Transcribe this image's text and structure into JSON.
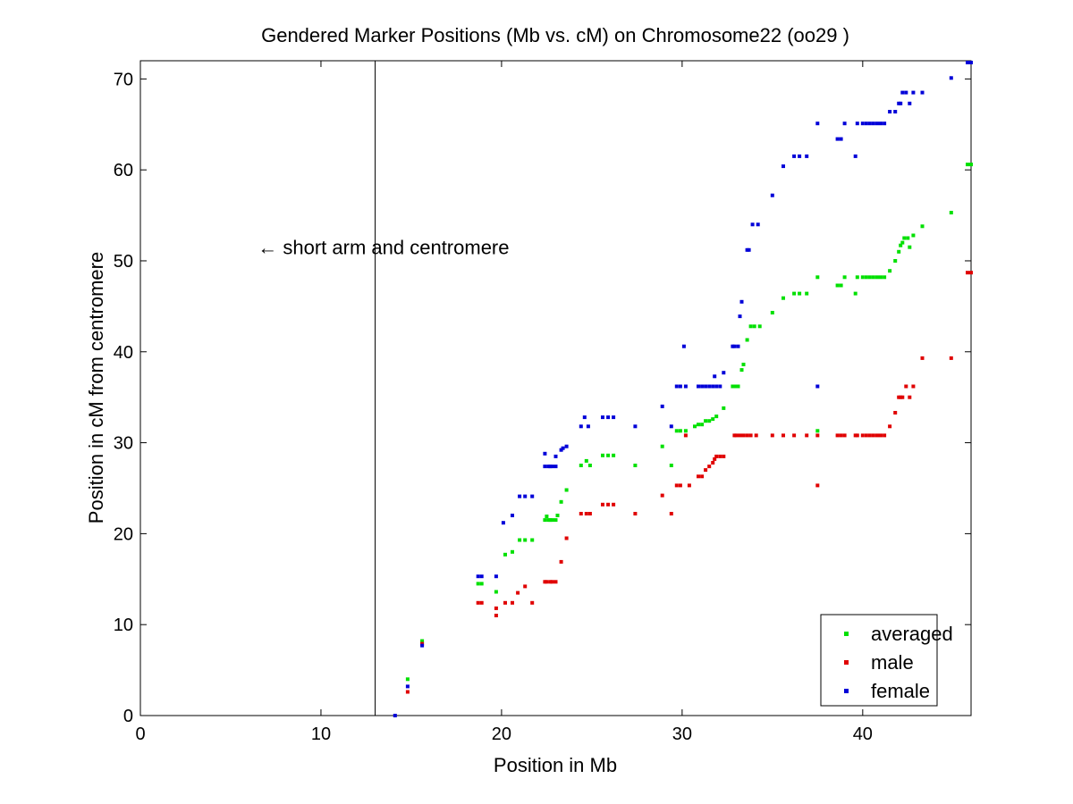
{
  "chart_data": {
    "type": "scatter",
    "title": "Gendered Marker Positions (Mb vs. cM) on Chromosome22 (oo29 )",
    "xlabel": "Position in Mb",
    "ylabel": "Position in cM from centromere",
    "xlim": [
      0,
      46
    ],
    "ylim": [
      0,
      72
    ],
    "xticks": [
      0,
      10,
      20,
      30,
      40
    ],
    "yticks": [
      0,
      10,
      20,
      30,
      40,
      50,
      60,
      70
    ],
    "grid": false,
    "legend_position": "bottom-right",
    "annotation": {
      "text": "← short arm and centromere",
      "x": 6.5,
      "y": 51.5
    },
    "vline_x": 13,
    "series": [
      {
        "name": "averaged",
        "color": "#00e000",
        "points": [
          [
            14.8,
            4.0
          ],
          [
            15.6,
            8.2
          ],
          [
            18.7,
            14.5
          ],
          [
            18.9,
            14.5
          ],
          [
            19.7,
            13.6
          ],
          [
            20.2,
            17.7
          ],
          [
            20.6,
            18.0
          ],
          [
            21.0,
            19.3
          ],
          [
            21.3,
            19.3
          ],
          [
            21.7,
            19.3
          ],
          [
            22.4,
            21.5
          ],
          [
            22.5,
            21.9
          ],
          [
            22.6,
            21.5
          ],
          [
            22.7,
            21.5
          ],
          [
            22.8,
            21.5
          ],
          [
            23.0,
            21.5
          ],
          [
            23.1,
            22.0
          ],
          [
            23.3,
            23.5
          ],
          [
            23.6,
            24.8
          ],
          [
            24.4,
            27.5
          ],
          [
            24.7,
            28.0
          ],
          [
            24.9,
            27.5
          ],
          [
            25.6,
            28.6
          ],
          [
            25.9,
            28.6
          ],
          [
            26.2,
            28.6
          ],
          [
            27.4,
            27.5
          ],
          [
            28.9,
            29.6
          ],
          [
            29.4,
            27.5
          ],
          [
            29.7,
            31.3
          ],
          [
            29.9,
            31.3
          ],
          [
            30.2,
            31.3
          ],
          [
            30.7,
            31.8
          ],
          [
            30.9,
            32.0
          ],
          [
            31.1,
            32.0
          ],
          [
            31.3,
            32.4
          ],
          [
            31.5,
            32.4
          ],
          [
            31.7,
            32.6
          ],
          [
            31.9,
            32.9
          ],
          [
            32.3,
            33.8
          ],
          [
            32.8,
            36.2
          ],
          [
            32.9,
            36.2
          ],
          [
            33.0,
            36.2
          ],
          [
            33.1,
            36.2
          ],
          [
            33.3,
            38.0
          ],
          [
            33.4,
            38.6
          ],
          [
            33.6,
            41.3
          ],
          [
            33.8,
            42.8
          ],
          [
            34.0,
            42.8
          ],
          [
            34.3,
            42.8
          ],
          [
            35.0,
            44.3
          ],
          [
            35.6,
            45.9
          ],
          [
            36.2,
            46.4
          ],
          [
            36.5,
            46.4
          ],
          [
            36.9,
            46.4
          ],
          [
            37.5,
            48.2
          ],
          [
            37.5,
            31.3
          ],
          [
            38.6,
            47.3
          ],
          [
            38.8,
            47.3
          ],
          [
            39.0,
            48.2
          ],
          [
            39.6,
            46.4
          ],
          [
            39.7,
            48.2
          ],
          [
            40.0,
            48.2
          ],
          [
            40.2,
            48.2
          ],
          [
            40.4,
            48.2
          ],
          [
            40.6,
            48.2
          ],
          [
            40.8,
            48.2
          ],
          [
            41.0,
            48.2
          ],
          [
            41.2,
            48.2
          ],
          [
            41.5,
            48.9
          ],
          [
            41.8,
            50.0
          ],
          [
            42.0,
            51.0
          ],
          [
            42.1,
            51.7
          ],
          [
            42.2,
            52.0
          ],
          [
            42.3,
            52.5
          ],
          [
            42.5,
            52.5
          ],
          [
            42.6,
            51.5
          ],
          [
            42.8,
            52.8
          ],
          [
            43.3,
            53.8
          ],
          [
            44.9,
            55.3
          ],
          [
            45.8,
            60.6
          ],
          [
            46.0,
            60.6
          ]
        ]
      },
      {
        "name": "male",
        "color": "#e00000",
        "points": [
          [
            14.8,
            2.6
          ],
          [
            15.6,
            7.9
          ],
          [
            18.7,
            12.4
          ],
          [
            18.9,
            12.4
          ],
          [
            19.7,
            11.0
          ],
          [
            19.7,
            11.8
          ],
          [
            20.2,
            12.4
          ],
          [
            20.6,
            12.4
          ],
          [
            20.9,
            13.5
          ],
          [
            21.3,
            14.2
          ],
          [
            21.7,
            12.4
          ],
          [
            22.4,
            14.7
          ],
          [
            22.5,
            14.7
          ],
          [
            22.7,
            14.7
          ],
          [
            22.8,
            14.7
          ],
          [
            23.0,
            14.7
          ],
          [
            23.3,
            16.9
          ],
          [
            23.6,
            19.5
          ],
          [
            24.4,
            22.2
          ],
          [
            24.7,
            22.2
          ],
          [
            24.9,
            22.2
          ],
          [
            25.6,
            23.2
          ],
          [
            25.9,
            23.2
          ],
          [
            26.2,
            23.2
          ],
          [
            27.4,
            22.2
          ],
          [
            28.9,
            24.2
          ],
          [
            29.4,
            22.2
          ],
          [
            29.7,
            25.3
          ],
          [
            29.9,
            25.3
          ],
          [
            30.2,
            30.8
          ],
          [
            30.4,
            25.3
          ],
          [
            30.9,
            26.3
          ],
          [
            31.1,
            26.3
          ],
          [
            31.3,
            27.0
          ],
          [
            31.5,
            27.4
          ],
          [
            31.7,
            27.8
          ],
          [
            31.8,
            28.2
          ],
          [
            31.9,
            28.5
          ],
          [
            32.1,
            28.5
          ],
          [
            32.3,
            28.5
          ],
          [
            32.9,
            30.8
          ],
          [
            33.0,
            30.8
          ],
          [
            33.2,
            30.8
          ],
          [
            33.4,
            30.8
          ],
          [
            33.6,
            30.8
          ],
          [
            33.8,
            30.8
          ],
          [
            34.1,
            30.8
          ],
          [
            35.0,
            30.8
          ],
          [
            35.6,
            30.8
          ],
          [
            36.2,
            30.8
          ],
          [
            36.9,
            30.8
          ],
          [
            37.5,
            30.8
          ],
          [
            37.5,
            25.3
          ],
          [
            38.6,
            30.8
          ],
          [
            38.8,
            30.8
          ],
          [
            39.0,
            30.8
          ],
          [
            39.6,
            30.8
          ],
          [
            39.7,
            30.8
          ],
          [
            40.0,
            30.8
          ],
          [
            40.2,
            30.8
          ],
          [
            40.4,
            30.8
          ],
          [
            40.6,
            30.8
          ],
          [
            40.8,
            30.8
          ],
          [
            41.0,
            30.8
          ],
          [
            41.2,
            30.8
          ],
          [
            41.5,
            31.8
          ],
          [
            41.8,
            33.3
          ],
          [
            42.0,
            35.0
          ],
          [
            42.1,
            35.0
          ],
          [
            42.2,
            35.0
          ],
          [
            42.4,
            36.2
          ],
          [
            42.6,
            35.0
          ],
          [
            42.8,
            36.2
          ],
          [
            43.3,
            39.3
          ],
          [
            44.9,
            39.3
          ],
          [
            45.8,
            48.7
          ],
          [
            46.0,
            48.7
          ]
        ]
      },
      {
        "name": "female",
        "color": "#0000d8",
        "points": [
          [
            14.1,
            0.0
          ],
          [
            14.8,
            3.2
          ],
          [
            15.6,
            7.7
          ],
          [
            18.7,
            15.3
          ],
          [
            18.9,
            15.3
          ],
          [
            19.7,
            15.3
          ],
          [
            20.1,
            21.2
          ],
          [
            20.6,
            22.0
          ],
          [
            21.0,
            24.1
          ],
          [
            21.3,
            24.1
          ],
          [
            21.7,
            24.1
          ],
          [
            22.4,
            28.8
          ],
          [
            22.4,
            27.4
          ],
          [
            22.6,
            27.4
          ],
          [
            22.7,
            27.4
          ],
          [
            22.8,
            27.4
          ],
          [
            23.0,
            27.4
          ],
          [
            23.0,
            28.5
          ],
          [
            23.3,
            29.2
          ],
          [
            23.4,
            29.4
          ],
          [
            23.6,
            29.6
          ],
          [
            24.4,
            31.8
          ],
          [
            24.6,
            32.8
          ],
          [
            24.8,
            31.8
          ],
          [
            25.6,
            32.8
          ],
          [
            25.9,
            32.8
          ],
          [
            26.2,
            32.8
          ],
          [
            27.4,
            31.8
          ],
          [
            28.9,
            34.0
          ],
          [
            29.4,
            31.8
          ],
          [
            29.7,
            36.2
          ],
          [
            29.9,
            36.2
          ],
          [
            30.1,
            40.6
          ],
          [
            30.2,
            36.2
          ],
          [
            30.9,
            36.2
          ],
          [
            31.1,
            36.2
          ],
          [
            31.3,
            36.2
          ],
          [
            31.5,
            36.2
          ],
          [
            31.7,
            36.2
          ],
          [
            31.8,
            37.3
          ],
          [
            31.9,
            36.2
          ],
          [
            32.1,
            36.2
          ],
          [
            32.3,
            37.7
          ],
          [
            32.8,
            40.6
          ],
          [
            32.9,
            40.6
          ],
          [
            33.1,
            40.6
          ],
          [
            33.2,
            43.9
          ],
          [
            33.3,
            45.5
          ],
          [
            33.6,
            51.2
          ],
          [
            33.7,
            51.2
          ],
          [
            33.9,
            54.0
          ],
          [
            34.2,
            54.0
          ],
          [
            35.0,
            57.2
          ],
          [
            35.6,
            60.4
          ],
          [
            36.2,
            61.5
          ],
          [
            36.5,
            61.5
          ],
          [
            36.9,
            61.5
          ],
          [
            37.5,
            65.1
          ],
          [
            37.5,
            36.2
          ],
          [
            38.6,
            63.4
          ],
          [
            38.8,
            63.4
          ],
          [
            39.0,
            65.1
          ],
          [
            39.6,
            61.5
          ],
          [
            39.7,
            65.1
          ],
          [
            40.0,
            65.1
          ],
          [
            40.2,
            65.1
          ],
          [
            40.4,
            65.1
          ],
          [
            40.6,
            65.1
          ],
          [
            40.8,
            65.1
          ],
          [
            41.0,
            65.1
          ],
          [
            41.2,
            65.1
          ],
          [
            41.5,
            66.4
          ],
          [
            41.8,
            66.4
          ],
          [
            42.0,
            67.3
          ],
          [
            42.1,
            67.3
          ],
          [
            42.2,
            68.5
          ],
          [
            42.4,
            68.5
          ],
          [
            42.6,
            67.3
          ],
          [
            42.8,
            68.5
          ],
          [
            43.3,
            68.5
          ],
          [
            44.9,
            70.1
          ],
          [
            45.8,
            71.8
          ],
          [
            46.0,
            71.8
          ]
        ]
      }
    ]
  }
}
